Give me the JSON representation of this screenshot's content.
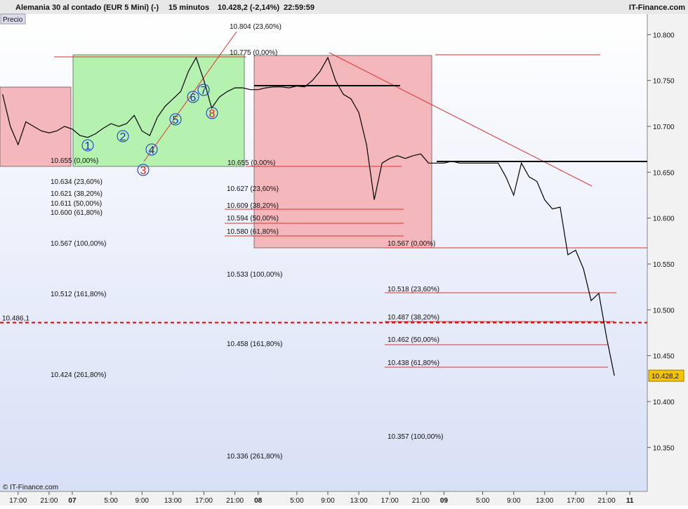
{
  "header": {
    "instrument": "Alemania 30 al contado (EUR 5 Mini) (-)",
    "period": "15 minutos",
    "quote": "10.428,2 (-2,14%)",
    "time": "22:59:59",
    "site": "IT-Finance.com"
  },
  "panel_label": "Precio",
  "copyright": "© IT-Finance.com",
  "chart_data": {
    "type": "line",
    "color": "#000000",
    "categories": [
      null,
      null,
      "17:00",
      null,
      null,
      null,
      "21:00",
      null,
      null,
      "07",
      null,
      null,
      null,
      null,
      "5:00",
      null,
      null,
      null,
      "9:00",
      null,
      null,
      null,
      "13:00",
      null,
      null,
      null,
      "17:00",
      null,
      null,
      null,
      "21:00",
      null,
      null,
      "08",
      null,
      null,
      null,
      null,
      "5:00",
      null,
      null,
      null,
      "9:00",
      null,
      null,
      null,
      "13:00",
      null,
      null,
      null,
      "17:00",
      null,
      null,
      null,
      "21:00",
      null,
      null,
      "09",
      null,
      null,
      null,
      null,
      "5:00",
      null,
      null,
      null,
      "9:00",
      null,
      null,
      null,
      "13:00",
      null,
      null,
      null,
      "17:00",
      null,
      null,
      null,
      "21:00",
      null,
      null,
      "11"
    ],
    "values": [
      10735,
      10700,
      10680,
      10705,
      10700,
      10695,
      10693,
      10695,
      10700,
      10697,
      10690,
      10688,
      10692,
      10698,
      10703,
      10700,
      10703,
      10712,
      10695,
      10690,
      10710,
      10722,
      10730,
      10738,
      10760,
      10775,
      10750,
      10720,
      10732,
      10738,
      10742,
      10742,
      10740,
      10740,
      10742,
      10743,
      10743,
      10742,
      10744,
      10743,
      10750,
      10760,
      10775,
      10750,
      10735,
      10730,
      10715,
      10680,
      10620,
      10660,
      10665,
      10668,
      10665,
      10668,
      10670,
      10660,
      10660,
      10660,
      10662,
      10660,
      10660,
      10660,
      10660,
      10660,
      10660,
      10645,
      10625,
      10660,
      10645,
      10640,
      10620,
      10610,
      10612,
      10560,
      10565,
      10545,
      10510,
      10518,
      10470,
      10428.2,
      null,
      null
    ],
    "ylim": [
      10302,
      10824
    ],
    "yticks": [
      {
        "value": 10800,
        "label": "10.800"
      },
      {
        "value": 10750,
        "label": "10.750"
      },
      {
        "value": 10700,
        "label": "10.700"
      },
      {
        "value": 10650,
        "label": "10.650"
      },
      {
        "value": 10600,
        "label": "10.600"
      },
      {
        "value": 10550,
        "label": "10.550"
      },
      {
        "value": 10500,
        "label": "10.500"
      },
      {
        "value": 10450,
        "label": "10.450"
      },
      {
        "value": 10400,
        "label": "10.400"
      },
      {
        "value": 10350,
        "label": "10.350"
      }
    ],
    "last_label": "10.428,2",
    "reference_line": {
      "value": 10486.1,
      "label": "10.486,1"
    },
    "annotations": [
      "10.655 (0,00%)",
      "10.634 (23,60%)",
      "10.621 (38,20%)",
      "10.611 (50,00%)",
      "10.600 (61,80%)",
      "10.567 (100,00%)",
      "10.512 (161,80%)",
      "10.424 (261,80%)",
      "10.804 (23,60%)",
      "10.775 (0,00%)",
      "10.655 (0,00%)",
      "10.627 (23,60%)",
      "10.609 (38,20%)",
      "10.594 (50,00%)",
      "10.580 (61,80%)",
      "10.533 (100,00%)",
      "10.458 (161,80%)",
      "10.336 (261,80%)",
      "10.567 (0,00%)",
      "10.518 (23,60%)",
      "10.487 (38,20%)",
      "10.462 (50,00%)",
      "10.438 (61,80%)",
      "10.357 (100,00%)"
    ],
    "wave_labels": [
      "1",
      "2",
      "3",
      "4",
      "5",
      "6",
      "7",
      "8"
    ]
  }
}
